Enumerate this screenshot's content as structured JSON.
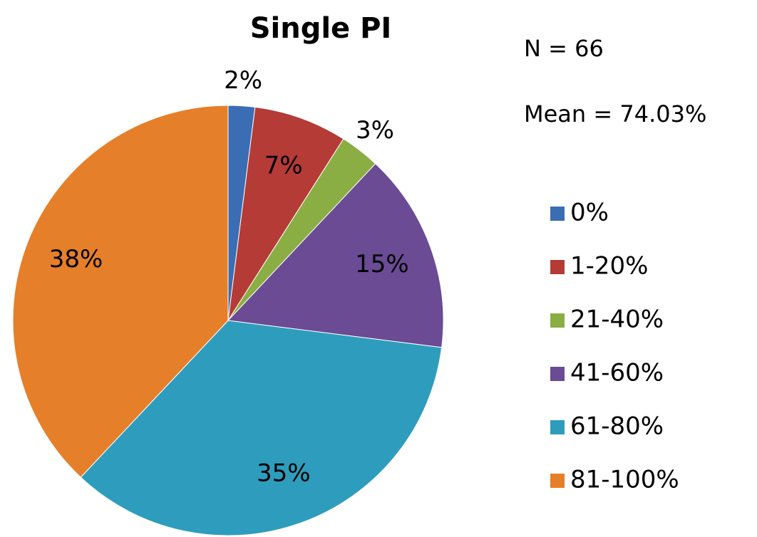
{
  "chart_data": {
    "type": "pie",
    "title": "Single PI",
    "annotations": [
      "N = 66",
      "Mean = 74.03%"
    ],
    "categories": [
      "0%",
      "1-20%",
      "21-40%",
      "41-60%",
      "61-80%",
      "81-100%"
    ],
    "values": [
      2,
      7,
      3,
      15,
      35,
      38
    ],
    "value_labels": [
      "2%",
      "7%",
      "3%",
      "15%",
      "35%",
      "38%"
    ],
    "colors": [
      "#3a6db4",
      "#b53b37",
      "#8aae43",
      "#6a4b94",
      "#2e9dbd",
      "#e67f2a"
    ],
    "legend": "right"
  }
}
